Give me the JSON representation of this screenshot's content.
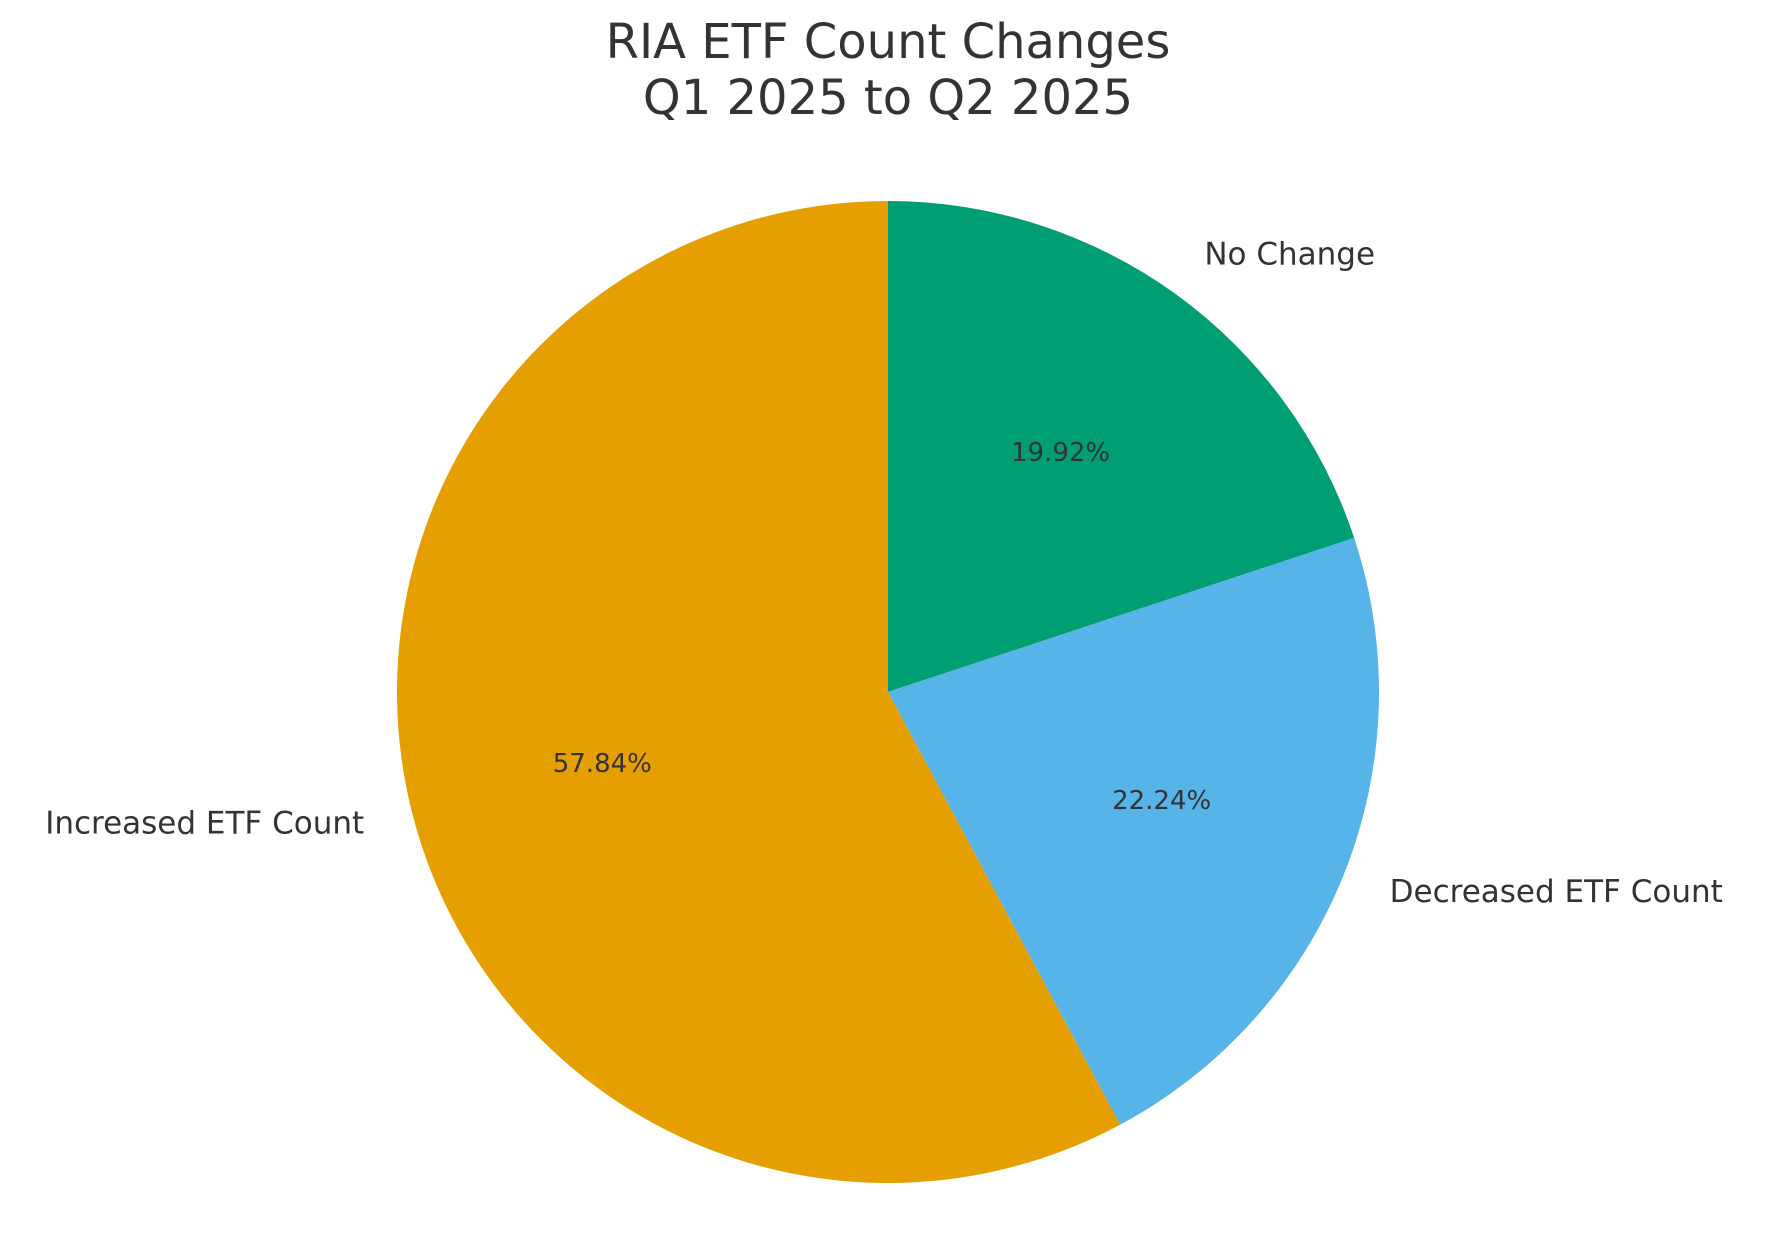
{
  "chart_data": {
    "type": "pie",
    "title": [
      "RIA ETF Count Changes",
      "Q1 2025 to Q2 2025"
    ],
    "slices": [
      {
        "label": "No Change",
        "value": 19.92,
        "value_label": "19.92%",
        "color": "#009E73"
      },
      {
        "label": "Decreased ETF Count",
        "value": 22.24,
        "value_label": "22.24%",
        "color": "#56B4E9"
      },
      {
        "label": "Increased ETF Count",
        "value": 57.84,
        "value_label": "57.84%",
        "color": "#E69F00"
      }
    ],
    "start_angle": "90 degrees (top)",
    "direction": "clockwise",
    "legend": "none"
  }
}
